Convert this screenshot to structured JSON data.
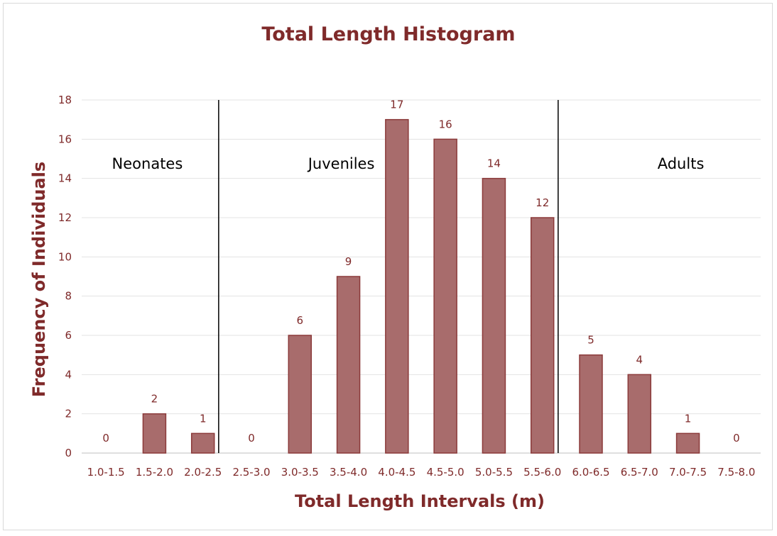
{
  "chart_data": {
    "type": "bar",
    "title": "Total Length Histogram",
    "xlabel": "Total Length Intervals (m)",
    "ylabel": "Frequency of Individuals",
    "categories": [
      "1.0-1.5",
      "1.5-2.0",
      "2.0-2.5",
      "2.5-3.0",
      "3.0-3.5",
      "3.5-4.0",
      "4.0-4.5",
      "4.5-5.0",
      "5.0-5.5",
      "5.5-6.0",
      "6.0-6.5",
      "6.5-7.0",
      "7.0-7.5",
      "7.5-8.0"
    ],
    "values": [
      0,
      2,
      1,
      0,
      6,
      9,
      17,
      16,
      14,
      12,
      5,
      4,
      1,
      0
    ],
    "ylim": [
      0,
      18
    ],
    "yticks": [
      0,
      2,
      4,
      6,
      8,
      10,
      12,
      14,
      16,
      18
    ],
    "grid": true,
    "data_labels": true,
    "bar_color": "#a86c6c",
    "bar_border_color": "#8b3a3a",
    "text_color": "#7f2a2a",
    "annotations": [
      {
        "text": "Neonates",
        "at_category": "1.5-2.0"
      },
      {
        "text": "Juveniles",
        "at_category": "3.5-4.0"
      },
      {
        "text": "Adults",
        "at_category": "7.0-7.5"
      }
    ],
    "divider_lines_between": [
      [
        "2.0-2.5",
        "2.5-3.0"
      ],
      [
        "5.5-6.0",
        "6.0-6.5"
      ]
    ]
  }
}
